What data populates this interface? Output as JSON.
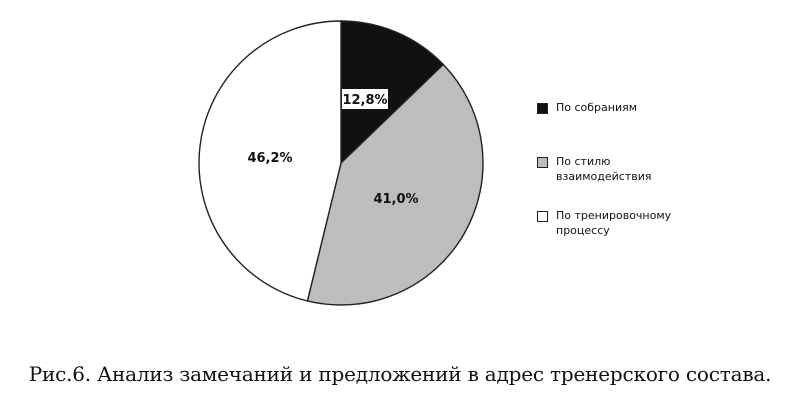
{
  "chart_data": {
    "type": "pie",
    "slices": [
      {
        "label": "По собраниям",
        "value": 12.8,
        "display": "12,8%",
        "color": "#111111"
      },
      {
        "label": "По стилю\nвзаимодействия",
        "value": 41.0,
        "display": "41,0%",
        "color": "#bdbdbd"
      },
      {
        "label": "По тренировочному\nпроцессу",
        "value": 46.2,
        "display": "46,2%",
        "color": "#ffffff"
      }
    ],
    "legend_placement": "right",
    "start_angle": "top",
    "direction": "clockwise"
  },
  "caption": "Рис.6. Анализ замечаний и предложений в адрес тренерского состава."
}
